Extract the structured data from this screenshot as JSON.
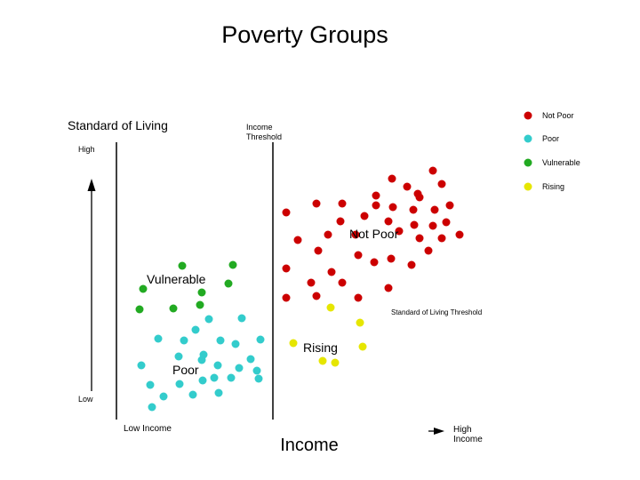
{
  "title": "Poverty Groups",
  "axes": {
    "y_title": "Standard of Living",
    "y_high": "High",
    "y_low": "Low",
    "x_title": "Income",
    "x_low": "Low Income",
    "x_high_line1": "High",
    "x_high_line2": "Income"
  },
  "thresholds": {
    "income_line1": "Income",
    "income_line2": "Threshold",
    "living": "Standard of Living Threshold"
  },
  "legend": [
    {
      "label": "Not Poor",
      "color": "#cc0000"
    },
    {
      "label": "Poor",
      "color": "#33cccc"
    },
    {
      "label": "Vulnerable",
      "color": "#22aa22"
    },
    {
      "label": "Rising",
      "color": "#e6e600"
    }
  ],
  "groups": {
    "not_poor": {
      "label": "Not Poor",
      "color": "#cc0000"
    },
    "poor": {
      "label": "Poor",
      "color": "#33cccc"
    },
    "vulnerable": {
      "label": "Vulnerable",
      "color": "#22aa22"
    },
    "rising": {
      "label": "Rising",
      "color": "#e6e600"
    }
  }
}
